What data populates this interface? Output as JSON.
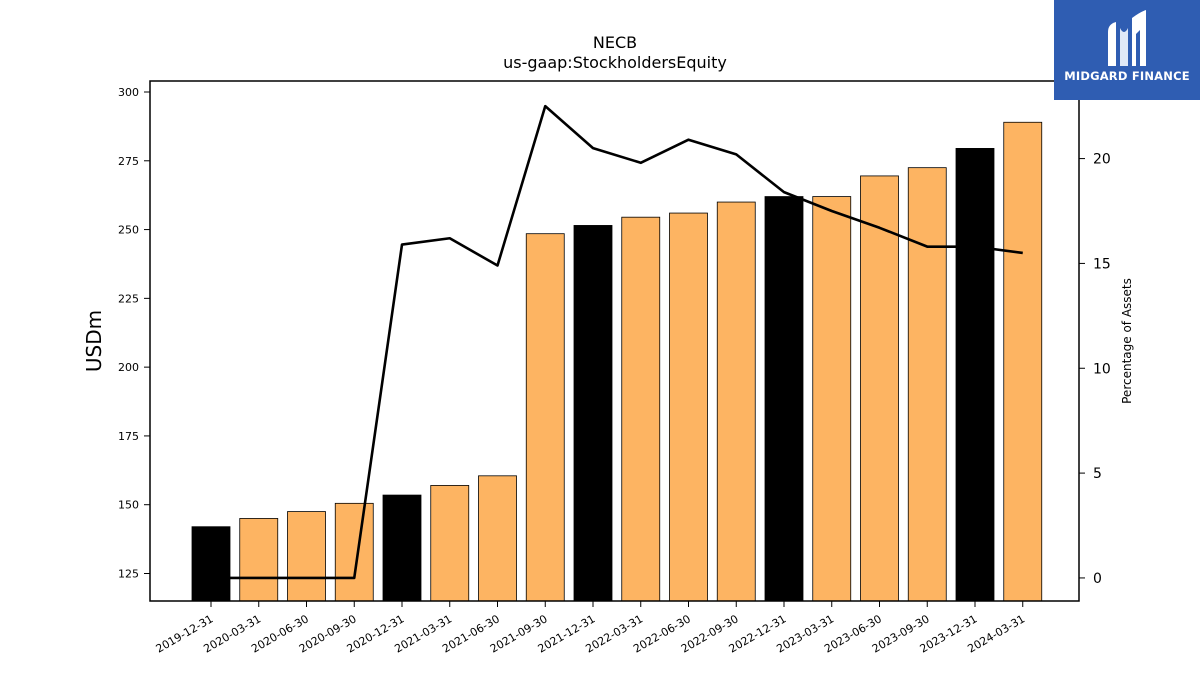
{
  "chart_data": {
    "type": "bar",
    "title": "NECB",
    "subtitle": "us-gaap:StockholdersEquity",
    "ylabel": "USDm",
    "ylabel_right": "Percentage of Assets",
    "ylim": [
      115,
      304
    ],
    "ylim_right": [
      -1.1,
      23.7
    ],
    "yticks": [
      125,
      150,
      175,
      200,
      225,
      250,
      275,
      300
    ],
    "yticks_right": [
      0,
      5,
      10,
      15,
      20
    ],
    "categories": [
      "2019-12-31",
      "2020-03-31",
      "2020-06-30",
      "2020-09-30",
      "2020-12-31",
      "2021-03-31",
      "2021-06-30",
      "2021-09-30",
      "2021-12-31",
      "2022-03-31",
      "2022-06-30",
      "2022-09-30",
      "2022-12-31",
      "2023-03-31",
      "2023-06-30",
      "2023-09-30",
      "2023-12-31",
      "2024-03-31"
    ],
    "series": [
      {
        "values": [
          142,
          145,
          147.5,
          150.5,
          153.5,
          157,
          160.5,
          248.5,
          251.5,
          254.5,
          256,
          260,
          262,
          262,
          269.5,
          272.5,
          279.5,
          289
        ],
        "colors": [
          "#000000",
          "#fdb462",
          "#fdb462",
          "#fdb462",
          "#000000",
          "#fdb462",
          "#fdb462",
          "#fdb462",
          "#000000",
          "#fdb462",
          "#fdb462",
          "#fdb462",
          "#000000",
          "#fdb462",
          "#fdb462",
          "#fdb462",
          "#000000",
          "#fdb462"
        ]
      },
      {
        "type": "line",
        "axis": "right",
        "color": "#000000",
        "values": [
          0,
          0,
          0,
          0,
          15.9,
          16.2,
          14.9,
          22.5,
          20.5,
          19.8,
          20.9,
          20.2,
          18.4,
          17.5,
          16.7,
          15.8,
          15.8,
          15.5
        ]
      }
    ],
    "grid": false,
    "legend": "none"
  },
  "logo": {
    "text": "MIDGARD FINANCE",
    "icon": "midgard-logo-icon",
    "color": "#2f5db2"
  }
}
